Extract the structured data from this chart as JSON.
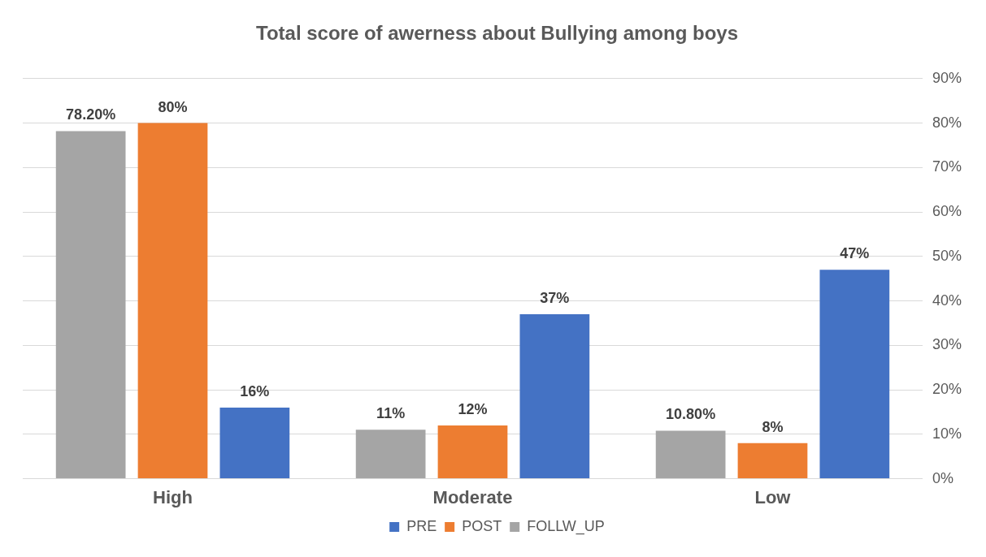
{
  "chart_data": {
    "type": "bar",
    "title": "Total score of awerness about Bullying among boys",
    "categories": [
      "High",
      "Moderate",
      "Low"
    ],
    "series": [
      {
        "name": "FOLLW_UP",
        "color": "#a5a5a5",
        "values": [
          78.2,
          11,
          10.8
        ],
        "value_labels": [
          "78.20%",
          "11%",
          "10.80%"
        ]
      },
      {
        "name": "POST",
        "color": "#ed7d31",
        "values": [
          80,
          12,
          8
        ],
        "value_labels": [
          "80%",
          "12%",
          "8%"
        ]
      },
      {
        "name": "PRE",
        "color": "#4472c4",
        "values": [
          16,
          37,
          47
        ],
        "value_labels": [
          "16%",
          "37%",
          "47%"
        ]
      }
    ],
    "ylim": [
      0,
      90
    ],
    "yticks": [
      {
        "value": 0,
        "label": "0%"
      },
      {
        "value": 10,
        "label": "10%"
      },
      {
        "value": 20,
        "label": "20%"
      },
      {
        "value": 30,
        "label": "30%"
      },
      {
        "value": 40,
        "label": "40%"
      },
      {
        "value": 50,
        "label": "50%"
      },
      {
        "value": 60,
        "label": "60%"
      },
      {
        "value": 70,
        "label": "70%"
      },
      {
        "value": 80,
        "label": "80%"
      },
      {
        "value": 90,
        "label": "90%"
      }
    ],
    "grid": "y",
    "legend": "bottom"
  }
}
